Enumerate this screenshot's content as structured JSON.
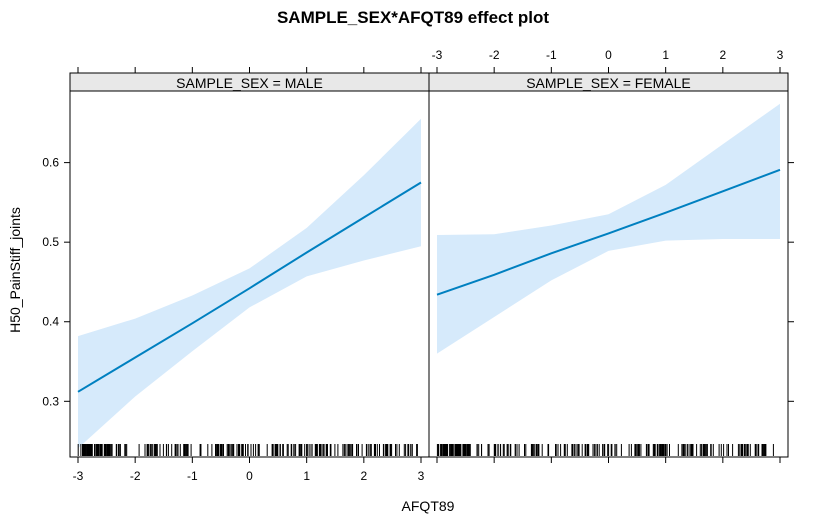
{
  "chart_data": {
    "type": "line",
    "title": "SAMPLE_SEX*AFQT89 effect plot",
    "xlabel": "AFQT89",
    "ylabel": "H50_PainStiff_joints",
    "xlim": [
      -3,
      3
    ],
    "ylim": [
      0.23,
      0.69
    ],
    "x_ticks": [
      -3,
      -2,
      -1,
      0,
      1,
      2,
      3
    ],
    "y_ticks": [
      0.3,
      0.4,
      0.5,
      0.6
    ],
    "x_tick_labels": [
      "-3",
      "-2",
      "-1",
      "0",
      "1",
      "2",
      "3"
    ],
    "y_tick_labels": [
      "0.3",
      "0.4",
      "0.5",
      "0.6"
    ],
    "grid": false,
    "line_color": "#0080c0",
    "band_color": "#d6eafb",
    "rug": true,
    "panels": [
      {
        "strip_label": "SAMPLE_SEX = MALE",
        "x": [
          -3,
          -2,
          -1,
          0,
          1,
          2,
          3
        ],
        "fit": [
          0.312,
          0.355,
          0.398,
          0.442,
          0.487,
          0.531,
          0.575
        ],
        "lower": [
          0.241,
          0.306,
          0.363,
          0.418,
          0.457,
          0.477,
          0.495
        ],
        "upper": [
          0.382,
          0.404,
          0.433,
          0.467,
          0.518,
          0.584,
          0.655
        ]
      },
      {
        "strip_label": "SAMPLE_SEX = FEMALE",
        "x": [
          -3,
          -2,
          -1,
          0,
          1,
          2,
          3
        ],
        "fit": [
          0.434,
          0.459,
          0.486,
          0.511,
          0.537,
          0.564,
          0.591
        ],
        "lower": [
          0.36,
          0.406,
          0.452,
          0.489,
          0.502,
          0.504,
          0.504
        ],
        "upper": [
          0.509,
          0.51,
          0.521,
          0.535,
          0.572,
          0.623,
          0.674
        ]
      }
    ]
  }
}
